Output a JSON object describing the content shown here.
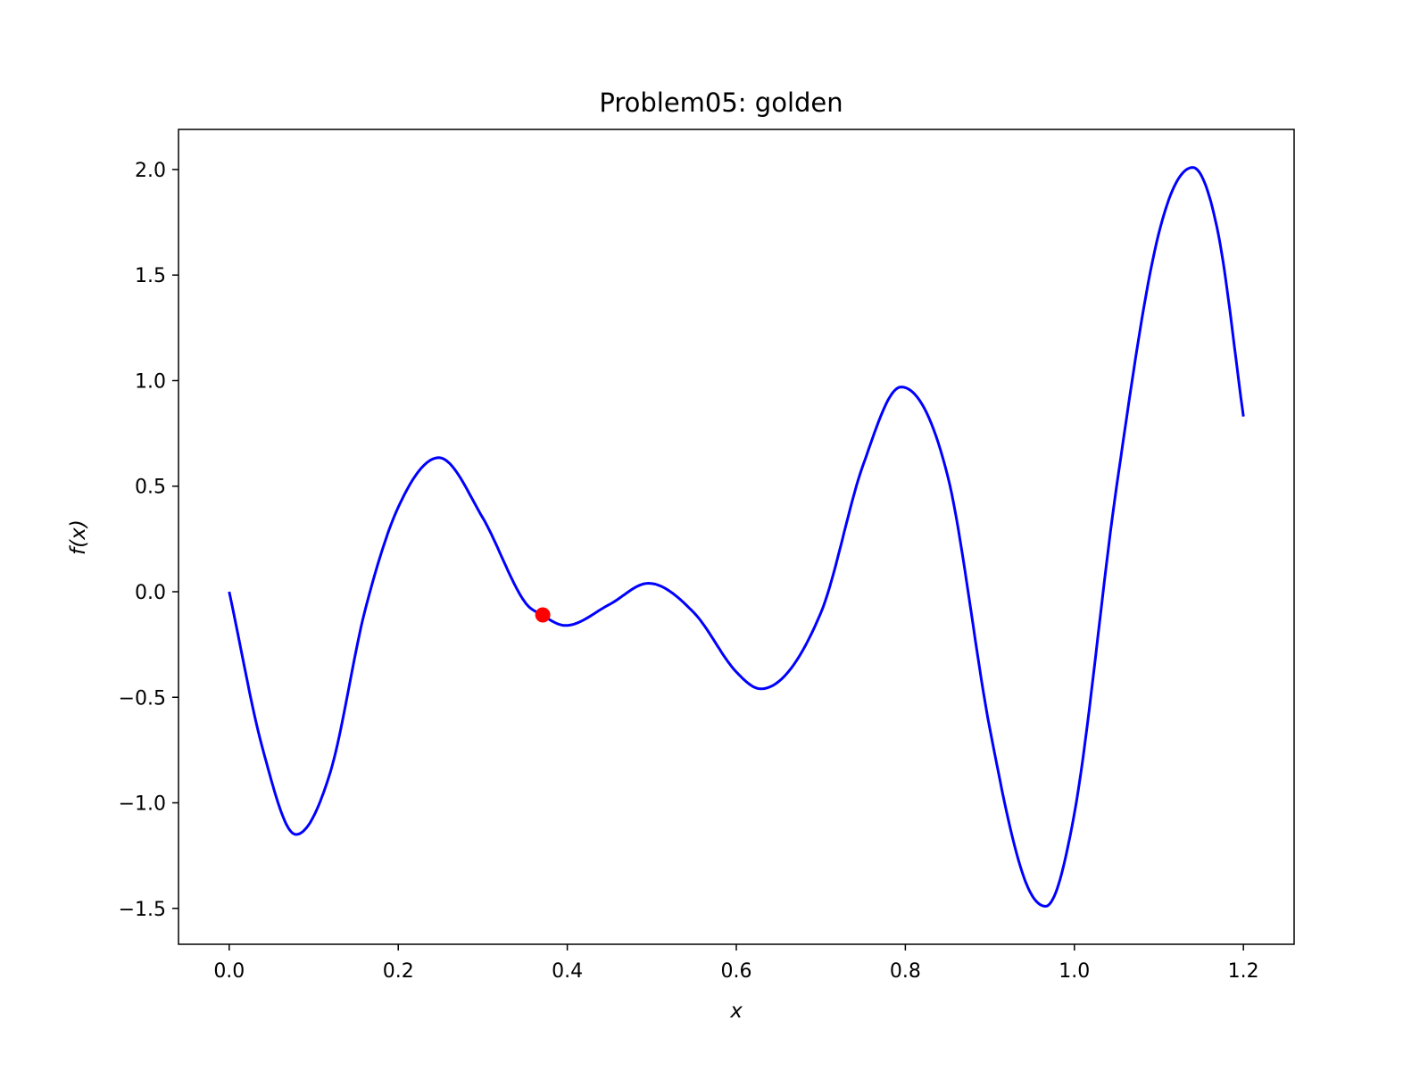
{
  "chart_data": {
    "type": "line",
    "title": "Problem05: golden",
    "xlabel": "x",
    "ylabel": "f(x)",
    "xlim": [
      -0.06,
      1.26
    ],
    "ylim": [
      -1.67,
      2.19
    ],
    "x_ticks": [
      0.0,
      0.2,
      0.4,
      0.6,
      0.8,
      1.0,
      1.2
    ],
    "x_tick_labels": [
      "0.0",
      "0.2",
      "0.4",
      "0.6",
      "0.8",
      "1.0",
      "1.2"
    ],
    "y_ticks": [
      -1.5,
      -1.0,
      -0.5,
      0.0,
      0.5,
      1.0,
      1.5,
      2.0
    ],
    "y_tick_labels": [
      "−1.5",
      "−1.0",
      "−0.5",
      "0.0",
      "0.5",
      "1.0",
      "1.5",
      "2.0"
    ],
    "grid": false,
    "series": [
      {
        "color": "#0000ff",
        "x": [
          0.0,
          0.04,
          0.079,
          0.12,
          0.16,
          0.2,
          0.248,
          0.3,
          0.35,
          0.37,
          0.398,
          0.45,
          0.496,
          0.55,
          0.6,
          0.629,
          0.7,
          0.75,
          0.795,
          0.85,
          0.9,
          0.94,
          0.966,
          1.0,
          1.05,
          1.1,
          1.14,
          1.17,
          1.2
        ],
        "y": [
          0.0,
          -0.75,
          -1.15,
          -0.85,
          -0.1,
          0.4,
          0.635,
          0.35,
          -0.05,
          -0.11,
          -0.16,
          -0.06,
          0.04,
          -0.1,
          -0.38,
          -0.46,
          -0.1,
          0.6,
          0.97,
          0.55,
          -0.65,
          -1.35,
          -1.49,
          -1.05,
          0.5,
          1.7,
          2.01,
          1.7,
          0.83
        ]
      }
    ],
    "markers": [
      {
        "x": 0.371,
        "y": -0.11,
        "color": "#ff0000"
      }
    ]
  }
}
